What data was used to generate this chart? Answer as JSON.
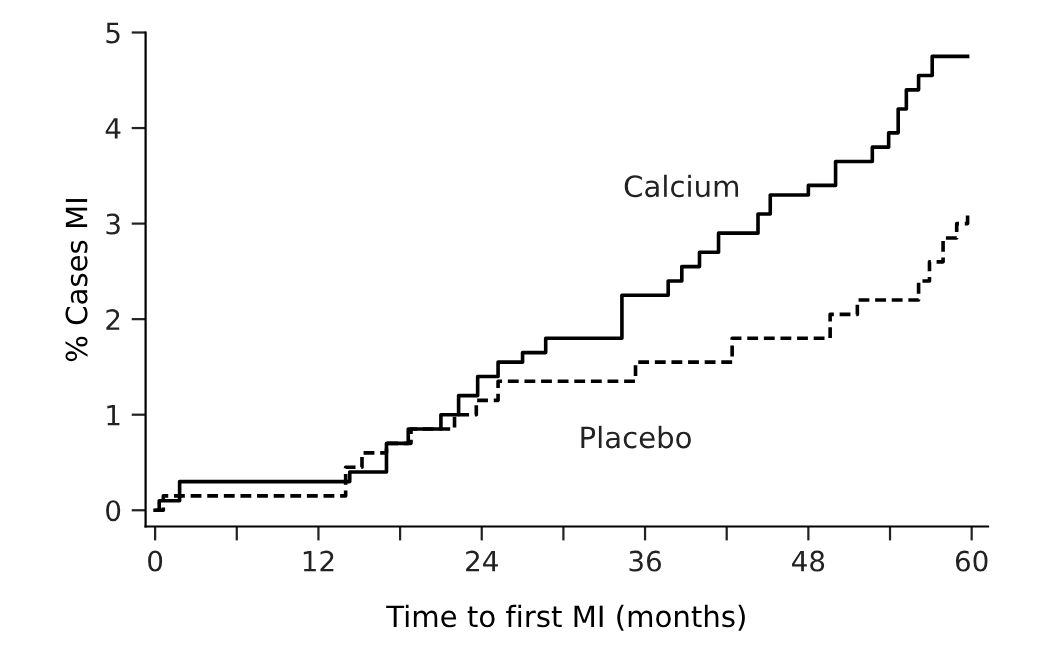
{
  "chart_data": {
    "type": "step",
    "xlabel": "Time to first MI (months)",
    "ylabel": "% Cases MI",
    "xlim": [
      -0.7,
      61.2
    ],
    "ylim": [
      -0.17,
      5.0
    ],
    "xticks": [
      0,
      {
        "value": 6,
        "label": null
      },
      12,
      {
        "value": 18,
        "label": null
      },
      24,
      {
        "value": 30,
        "label": null
      },
      36,
      {
        "value": 42,
        "label": null
      },
      48,
      {
        "value": 54,
        "label": null
      },
      60
    ],
    "yticks": [
      0,
      1,
      2,
      3,
      4,
      5
    ],
    "grid": false,
    "legend": false,
    "series": [
      {
        "name": "Calcium",
        "color": "#000000",
        "line_style": "solid",
        "x": [
          0,
          0.3,
          1.8,
          14.3,
          17,
          18.6,
          21,
          22.3,
          23.7,
          25.2,
          27,
          28.7,
          34.3,
          37.7,
          38.7,
          40,
          41.4,
          44.3,
          45.2,
          48,
          50,
          52.7,
          53.9,
          54.6,
          55.2,
          56.1,
          57.1,
          59.7
        ],
        "values": [
          0,
          0.1,
          0.3,
          0.4,
          0.7,
          0.85,
          1.0,
          1.2,
          1.4,
          1.55,
          1.65,
          1.8,
          2.25,
          2.4,
          2.55,
          2.7,
          2.9,
          3.1,
          3.3,
          3.4,
          3.65,
          3.8,
          3.95,
          4.2,
          4.4,
          4.55,
          4.75,
          4.75
        ]
      },
      {
        "name": "Placebo",
        "color": "#000000",
        "line_style": "dashed",
        "x": [
          0,
          0.6,
          14,
          15.2,
          17,
          18.8,
          22,
          23.6,
          25.2,
          35.3,
          42.4,
          49.6,
          51.6,
          56.1,
          56.9,
          57.9,
          58.9,
          59.7
        ],
        "values": [
          0,
          0.15,
          0.45,
          0.6,
          0.7,
          0.85,
          1.0,
          1.15,
          1.35,
          1.55,
          1.8,
          2.05,
          2.2,
          2.4,
          2.6,
          2.85,
          3.0,
          3.1
        ]
      }
    ]
  }
}
